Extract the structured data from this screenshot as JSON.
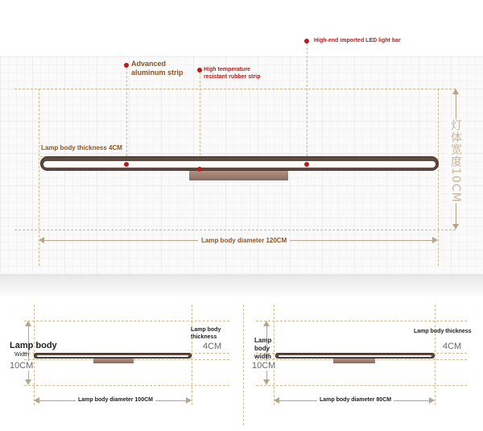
{
  "main_diagram": {
    "callout_led": "High-end imported LED light bar",
    "callout_aluminum_line1": "Advanced",
    "callout_aluminum_line2": "aluminum strip",
    "callout_rubber_line1": "High temperature",
    "callout_rubber_line2": "resistant rubber strip",
    "thickness_label": "Lamp body thickness 4CM",
    "diameter_label": "Lamp body diameter 120CM",
    "width_vertical_label": "灯体宽度10CM"
  },
  "diagram_100": {
    "lamp_body_label": "Lamp body",
    "width_label": "Width",
    "width_value": "10CM",
    "thickness_line1": "Lamp body",
    "thickness_line2": "thickness",
    "thickness_value": "4CM",
    "diameter_label": "Lamp body diameter 100CM"
  },
  "diagram_80": {
    "lamp_body_line1": "Lamp",
    "lamp_body_line2": "body",
    "lamp_body_line3": "width",
    "width_value": "10CM",
    "thickness_label": "Lamp body thickness",
    "thickness_value": "4CM",
    "diameter_label": "Lamp body diameter 80CM"
  },
  "colors": {
    "accent_red": "#b71c1c",
    "label_brown": "#8a5524",
    "lamp_body": "#5f4a42",
    "guide": "#cfb98f"
  }
}
